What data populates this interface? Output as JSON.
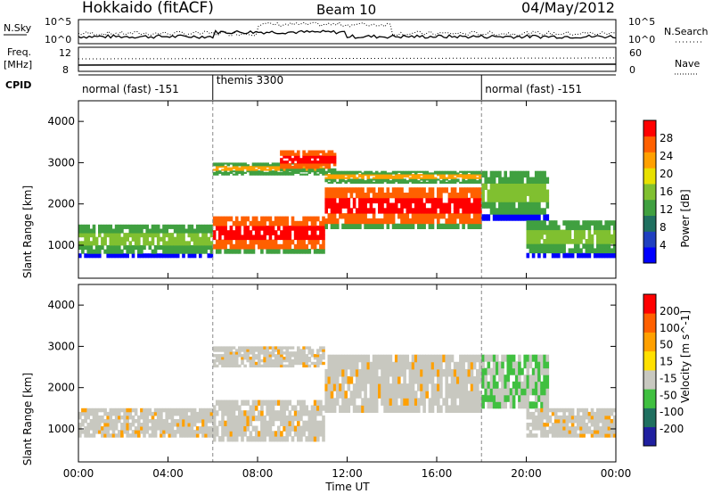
{
  "header": {
    "station": "Hokkaido (fitACF)",
    "beam": "Beam 10",
    "date": "04/May/2012"
  },
  "summary_panel": {
    "nsky_label": "N.Sky",
    "nsearch_label": "N.Search",
    "nsky_ticks": [
      "10^5",
      "10^0"
    ],
    "nsearch_ticks": [
      "10^5",
      "10^0"
    ],
    "freq_label_1": "Freq.",
    "freq_label_2": "[MHz]",
    "freq_ticks": [
      "12",
      "8"
    ],
    "nave_label": "Nave",
    "nave_ticks": [
      "60",
      "0"
    ],
    "cpid_label": "CPID",
    "cpid_segments": [
      {
        "label": "normal (fast) -151",
        "start_h": 0,
        "end_h": 6
      },
      {
        "label": "themis 3300",
        "start_h": 6,
        "end_h": 18
      },
      {
        "label": "normal (fast) -151",
        "start_h": 18,
        "end_h": 24
      }
    ]
  },
  "colorbars": {
    "power": {
      "title": "Power [dB]",
      "ticks": [
        "28",
        "24",
        "20",
        "16",
        "12",
        "8",
        "4"
      ],
      "colors": [
        "#0000ff",
        "#2040c0",
        "#207060",
        "#40a040",
        "#80c030",
        "#e8e000",
        "#ffa000",
        "#ff6000",
        "#ff0000"
      ]
    },
    "velocity": {
      "title": "Velocity [m s^-1]",
      "ticks": [
        "200",
        "100",
        "50",
        "15",
        "-15",
        "-50",
        "-100",
        "-200"
      ],
      "colors": [
        "#2020a0",
        "#207060",
        "#40c040",
        "#c8c8c0",
        "#ffe000",
        "#ffa000",
        "#ff6000",
        "#ff0000"
      ]
    }
  },
  "chart_data": [
    {
      "type": "heatmap",
      "name": "power",
      "ylabel": "Slant Range [km]",
      "xlabel": "",
      "xlim": [
        0,
        24
      ],
      "ylim": [
        200,
        4500
      ],
      "yticks": [
        1000,
        2000,
        3000,
        4000
      ],
      "bands": [
        {
          "t0": 0,
          "t1": 6,
          "r0": 700,
          "r1": 1500,
          "level": "low"
        },
        {
          "t0": 6,
          "t1": 11,
          "r0": 800,
          "r1": 1700,
          "level": "high"
        },
        {
          "t0": 6,
          "t1": 11,
          "r0": 2700,
          "r1": 3000,
          "level": "mid"
        },
        {
          "t0": 9,
          "t1": 11.5,
          "r0": 2800,
          "r1": 3300,
          "level": "high"
        },
        {
          "t0": 11,
          "t1": 18,
          "r0": 1400,
          "r1": 2400,
          "level": "high"
        },
        {
          "t0": 11,
          "t1": 18,
          "r0": 2500,
          "r1": 2800,
          "level": "mid"
        },
        {
          "t0": 18,
          "t1": 21,
          "r0": 1600,
          "r1": 2800,
          "level": "low"
        },
        {
          "t0": 20,
          "t1": 24,
          "r0": 700,
          "r1": 1600,
          "level": "low"
        }
      ]
    },
    {
      "type": "heatmap",
      "name": "velocity",
      "ylabel": "Slant Range [km]",
      "xlabel": "Time UT",
      "xlim": [
        0,
        24
      ],
      "ylim": [
        200,
        4500
      ],
      "xticks": [
        "00:00",
        "04:00",
        "08:00",
        "12:00",
        "16:00",
        "20:00",
        "00:00"
      ],
      "yticks": [
        1000,
        2000,
        3000,
        4000
      ],
      "bands": [
        {
          "t0": 0,
          "t1": 6,
          "r0": 800,
          "r1": 1500,
          "level": "gray"
        },
        {
          "t0": 6,
          "t1": 11,
          "r0": 700,
          "r1": 1700,
          "level": "gray"
        },
        {
          "t0": 6,
          "t1": 11,
          "r0": 2500,
          "r1": 3000,
          "level": "gray"
        },
        {
          "t0": 11,
          "t1": 18,
          "r0": 1400,
          "r1": 2800,
          "level": "gray"
        },
        {
          "t0": 18,
          "t1": 21,
          "r0": 1500,
          "r1": 2800,
          "level": "green"
        },
        {
          "t0": 20,
          "t1": 24,
          "r0": 800,
          "r1": 1500,
          "level": "gray"
        }
      ]
    }
  ]
}
